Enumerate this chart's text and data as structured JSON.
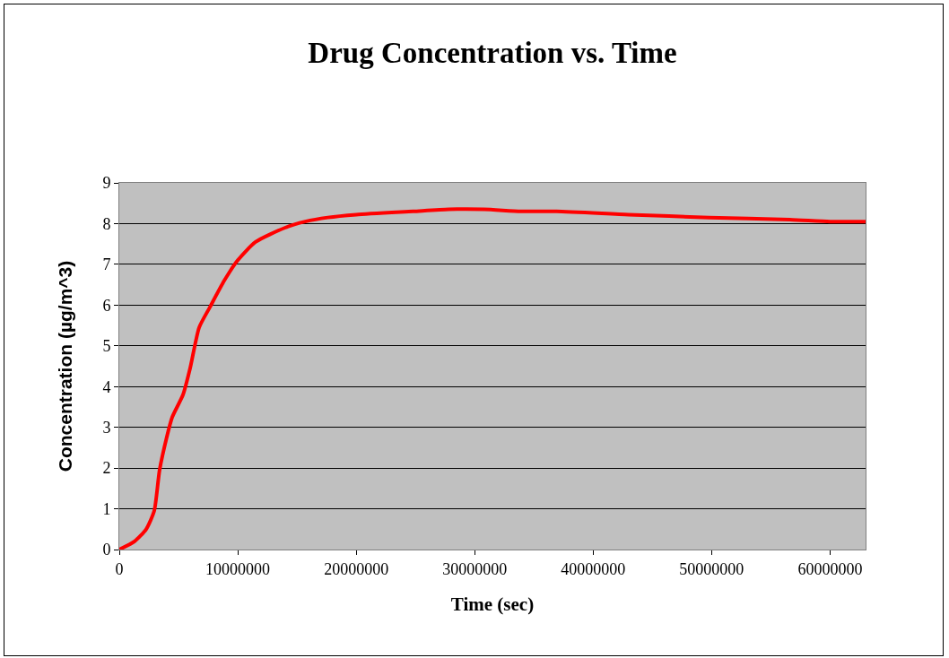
{
  "chart_data": {
    "type": "line",
    "title": "Drug Concentration vs. Time",
    "xlabel": "Time (sec)",
    "ylabel": "Concentration (µg/m^3)",
    "x": [
      0,
      1290000,
      2270000,
      2950000,
      3400000,
      4000000,
      4470000,
      5380000,
      5980000,
      6740000,
      7650000,
      8860000,
      10000000,
      11500000,
      14000000,
      15700000,
      17600000,
      20000000,
      24800000,
      27800000,
      30800000,
      33900000,
      36900000,
      43000000,
      49800000,
      56600000,
      60000000,
      63000000
    ],
    "series": [
      {
        "color": "#ff0000",
        "values": [
          0,
          0.2,
          0.5,
          0.95,
          1.95,
          2.75,
          3.25,
          3.8,
          4.45,
          5.45,
          5.95,
          6.6,
          7.1,
          7.55,
          7.9,
          8.05,
          8.15,
          8.22,
          8.3,
          8.35,
          8.35,
          8.3,
          8.3,
          8.22,
          8.15,
          8.1,
          8.05,
          8.05
        ]
      }
    ],
    "xlim": [
      0,
      63000000
    ],
    "xticks": [
      0,
      10000000,
      20000000,
      30000000,
      40000000,
      50000000,
      60000000
    ],
    "ylim": [
      0,
      9
    ],
    "yticks": [
      0,
      1,
      2,
      3,
      4,
      5,
      6,
      7,
      8,
      9
    ],
    "grid": "y",
    "marker": "none",
    "line_style": "solid"
  }
}
